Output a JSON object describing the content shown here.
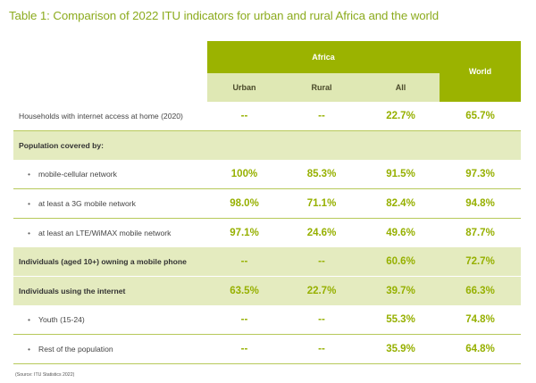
{
  "title": "Table 1: Comparison of 2022 ITU indicators for urban and rural Africa and the world",
  "header": {
    "africa": "Africa",
    "world": "World",
    "urban": "Urban",
    "rural": "Rural",
    "all": "All"
  },
  "rows": {
    "households": {
      "label": "Households with internet access at home (2020)",
      "urban": "--",
      "rural": "--",
      "all": "22.7%",
      "world": "65.7%"
    },
    "population_label": "Population covered by:",
    "mobile_cellular": {
      "label": "mobile-cellular network",
      "urban": "100%",
      "rural": "85.3%",
      "all": "91.5%",
      "world": "97.3%"
    },
    "mobile_3g": {
      "label": "at least a 3G mobile network",
      "urban": "98.0%",
      "rural": "71.1%",
      "all": "82.4%",
      "world": "94.8%"
    },
    "lte": {
      "label": "at least an LTE/WiMAX mobile network",
      "urban": "97.1%",
      "rural": "24.6%",
      "all": "49.6%",
      "world": "87.7%"
    },
    "owning_phone": {
      "label": "Individuals (aged 10+) owning a mobile phone",
      "urban": "--",
      "rural": "--",
      "all": "60.6%",
      "world": "72.7%"
    },
    "using_internet": {
      "label": "Individuals using the internet",
      "urban": "63.5%",
      "rural": "22.7%",
      "all": "39.7%",
      "world": "66.3%"
    },
    "youth": {
      "label": "Youth (15-24)",
      "urban": "--",
      "rural": "--",
      "all": "55.3%",
      "world": "74.8%"
    },
    "rest": {
      "label": "Rest of the population",
      "urban": "--",
      "rural": "--",
      "all": "35.9%",
      "world": "64.8%"
    }
  },
  "bullet": "•",
  "source": "(Source: ITU Statistics 2022)",
  "colors": {
    "accent": "#9bb300",
    "light_band": "#e4ebbf",
    "title": "#8cab1e"
  }
}
